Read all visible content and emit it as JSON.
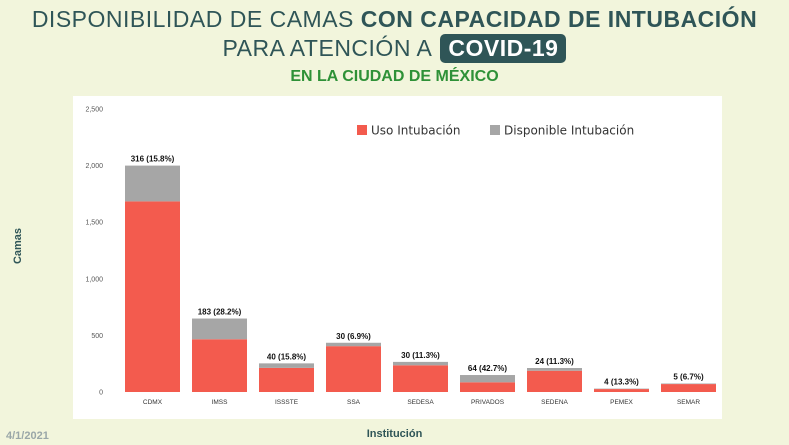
{
  "header": {
    "title_line1_normal": "DISPONIBILIDAD DE CAMAS",
    "title_line1_bold": "CON CAPACIDAD DE INTUBACIÓN",
    "title_line2": "PARA ATENCIÓN A",
    "title_badge": "COVID-19",
    "subtitle": "EN LA CIUDAD DE MÉXICO"
  },
  "footer": {
    "date": "4/1/2021"
  },
  "colors": {
    "uso": "#f35b4e",
    "disponible": "#a6a6a6"
  },
  "chart_data": {
    "type": "bar",
    "stacked": true,
    "categories": [
      "CDMX",
      "IMSS",
      "ISSSTE",
      "SSA",
      "SEDESA",
      "PRIVADOS",
      "SEDENA",
      "PEMEX",
      "SEMAR"
    ],
    "series": [
      {
        "name": "Uso Intubación",
        "values": [
          1684,
          466,
          213,
          405,
          236,
          86,
          188,
          26,
          70
        ]
      },
      {
        "name": "Disponible Intubación",
        "values": [
          316,
          183,
          40,
          30,
          30,
          64,
          24,
          4,
          5
        ]
      }
    ],
    "data_labels": [
      "316 (15.8%)",
      "183 (28.2%)",
      "40 (15.8%)",
      "30 (6.9%)",
      "30 (11.3%)",
      "64 (42.7%)",
      "24 (11.3%)",
      "4 (13.3%)",
      "5 (6.7%)"
    ],
    "yticks": [
      "0",
      "500",
      "1,000",
      "1,500",
      "2,000",
      "2,500"
    ],
    "ylim": [
      0,
      2500
    ],
    "xlabel": "Institución",
    "ylabel": "Camas",
    "legend_position": "top-right",
    "grid": false
  }
}
